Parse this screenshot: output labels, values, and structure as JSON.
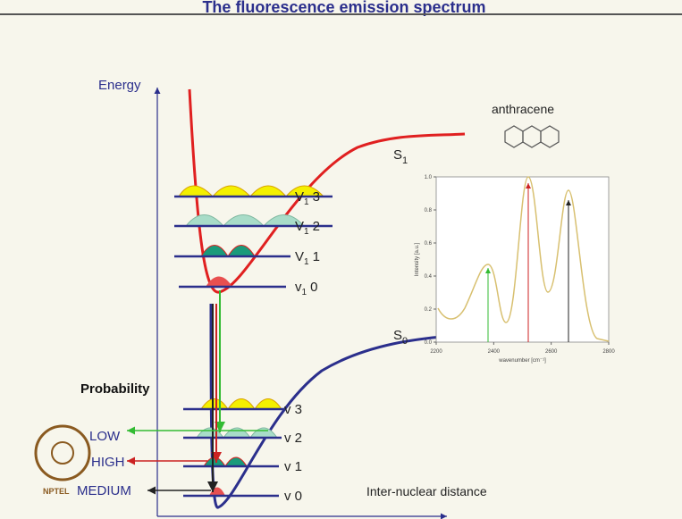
{
  "title": "The fluorescence emission spectrum",
  "energy_axis_label": "Energy",
  "distance_axis_label": "Inter-nuclear distance",
  "excited_state": {
    "main": "S",
    "sub": "1"
  },
  "ground_state": {
    "main": "S",
    "sub": "0"
  },
  "excited_levels": [
    {
      "main": "V",
      "sub": "1",
      "level": "3"
    },
    {
      "main": "V",
      "sub": "1",
      "level": "2"
    },
    {
      "main": "V",
      "sub": "1",
      "level": "1"
    },
    {
      "main": "v",
      "sub": "1",
      "level": "0"
    }
  ],
  "ground_levels": [
    "v 3",
    "v 2",
    "v 1",
    "v 0"
  ],
  "probability": {
    "heading": "Probability",
    "labels": [
      "LOW",
      "HIGH",
      "MEDIUM"
    ]
  },
  "logo_text": "NPTEL",
  "spectrum": {
    "molecule": "anthracene",
    "x_label": "wavenumber [cm⁻¹]",
    "y_label": "Intensity [a.u.]",
    "xlim": [
      2200,
      2800
    ],
    "xticks": [
      2200,
      2400,
      2600,
      2800
    ],
    "ylim": [
      0,
      1
    ],
    "yticks": [
      {
        "value": 0,
        "label": "0.0"
      },
      0.2,
      0.4,
      0.6,
      0.8,
      {
        "value": 1,
        "label": "1.0"
      }
    ]
  }
}
